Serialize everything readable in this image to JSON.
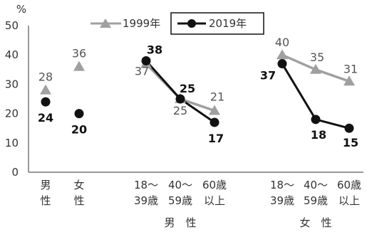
{
  "colors": {
    "s1999": "#a0a0a0",
    "s2019": "#111111",
    "axis": "#333333"
  },
  "chart_data": {
    "type": "line",
    "ylabel": "%",
    "ylim": [
      0,
      50
    ],
    "yticks": [
      "0",
      "10",
      "20",
      "30",
      "40",
      "50"
    ],
    "categories": [
      {
        "line1": "男",
        "line2": "性"
      },
      {
        "line1": "女",
        "line2": "性"
      },
      {
        "line1": "18～",
        "line2": "39歳"
      },
      {
        "line1": "40～",
        "line2": "59歳"
      },
      {
        "line1": "60歳",
        "line2": "以上"
      },
      {
        "line1": "18～",
        "line2": "39歳"
      },
      {
        "line1": "40～",
        "line2": "59歳"
      },
      {
        "line1": "60歳",
        "line2": "以上"
      }
    ],
    "group_labels": [
      {
        "label": "男　性",
        "from": 2,
        "to": 4
      },
      {
        "label": "女　性",
        "from": 5,
        "to": 7
      }
    ],
    "segments": [
      [
        0
      ],
      [
        1
      ],
      [
        2,
        3,
        4
      ],
      [
        5,
        6,
        7
      ]
    ],
    "series": [
      {
        "name": "1999年",
        "values": [
          28,
          36,
          37,
          25,
          21,
          40,
          35,
          31
        ]
      },
      {
        "name": "2019年",
        "values": [
          24,
          20,
          38,
          25,
          17,
          37,
          18,
          15
        ]
      }
    ],
    "legend": "top"
  }
}
